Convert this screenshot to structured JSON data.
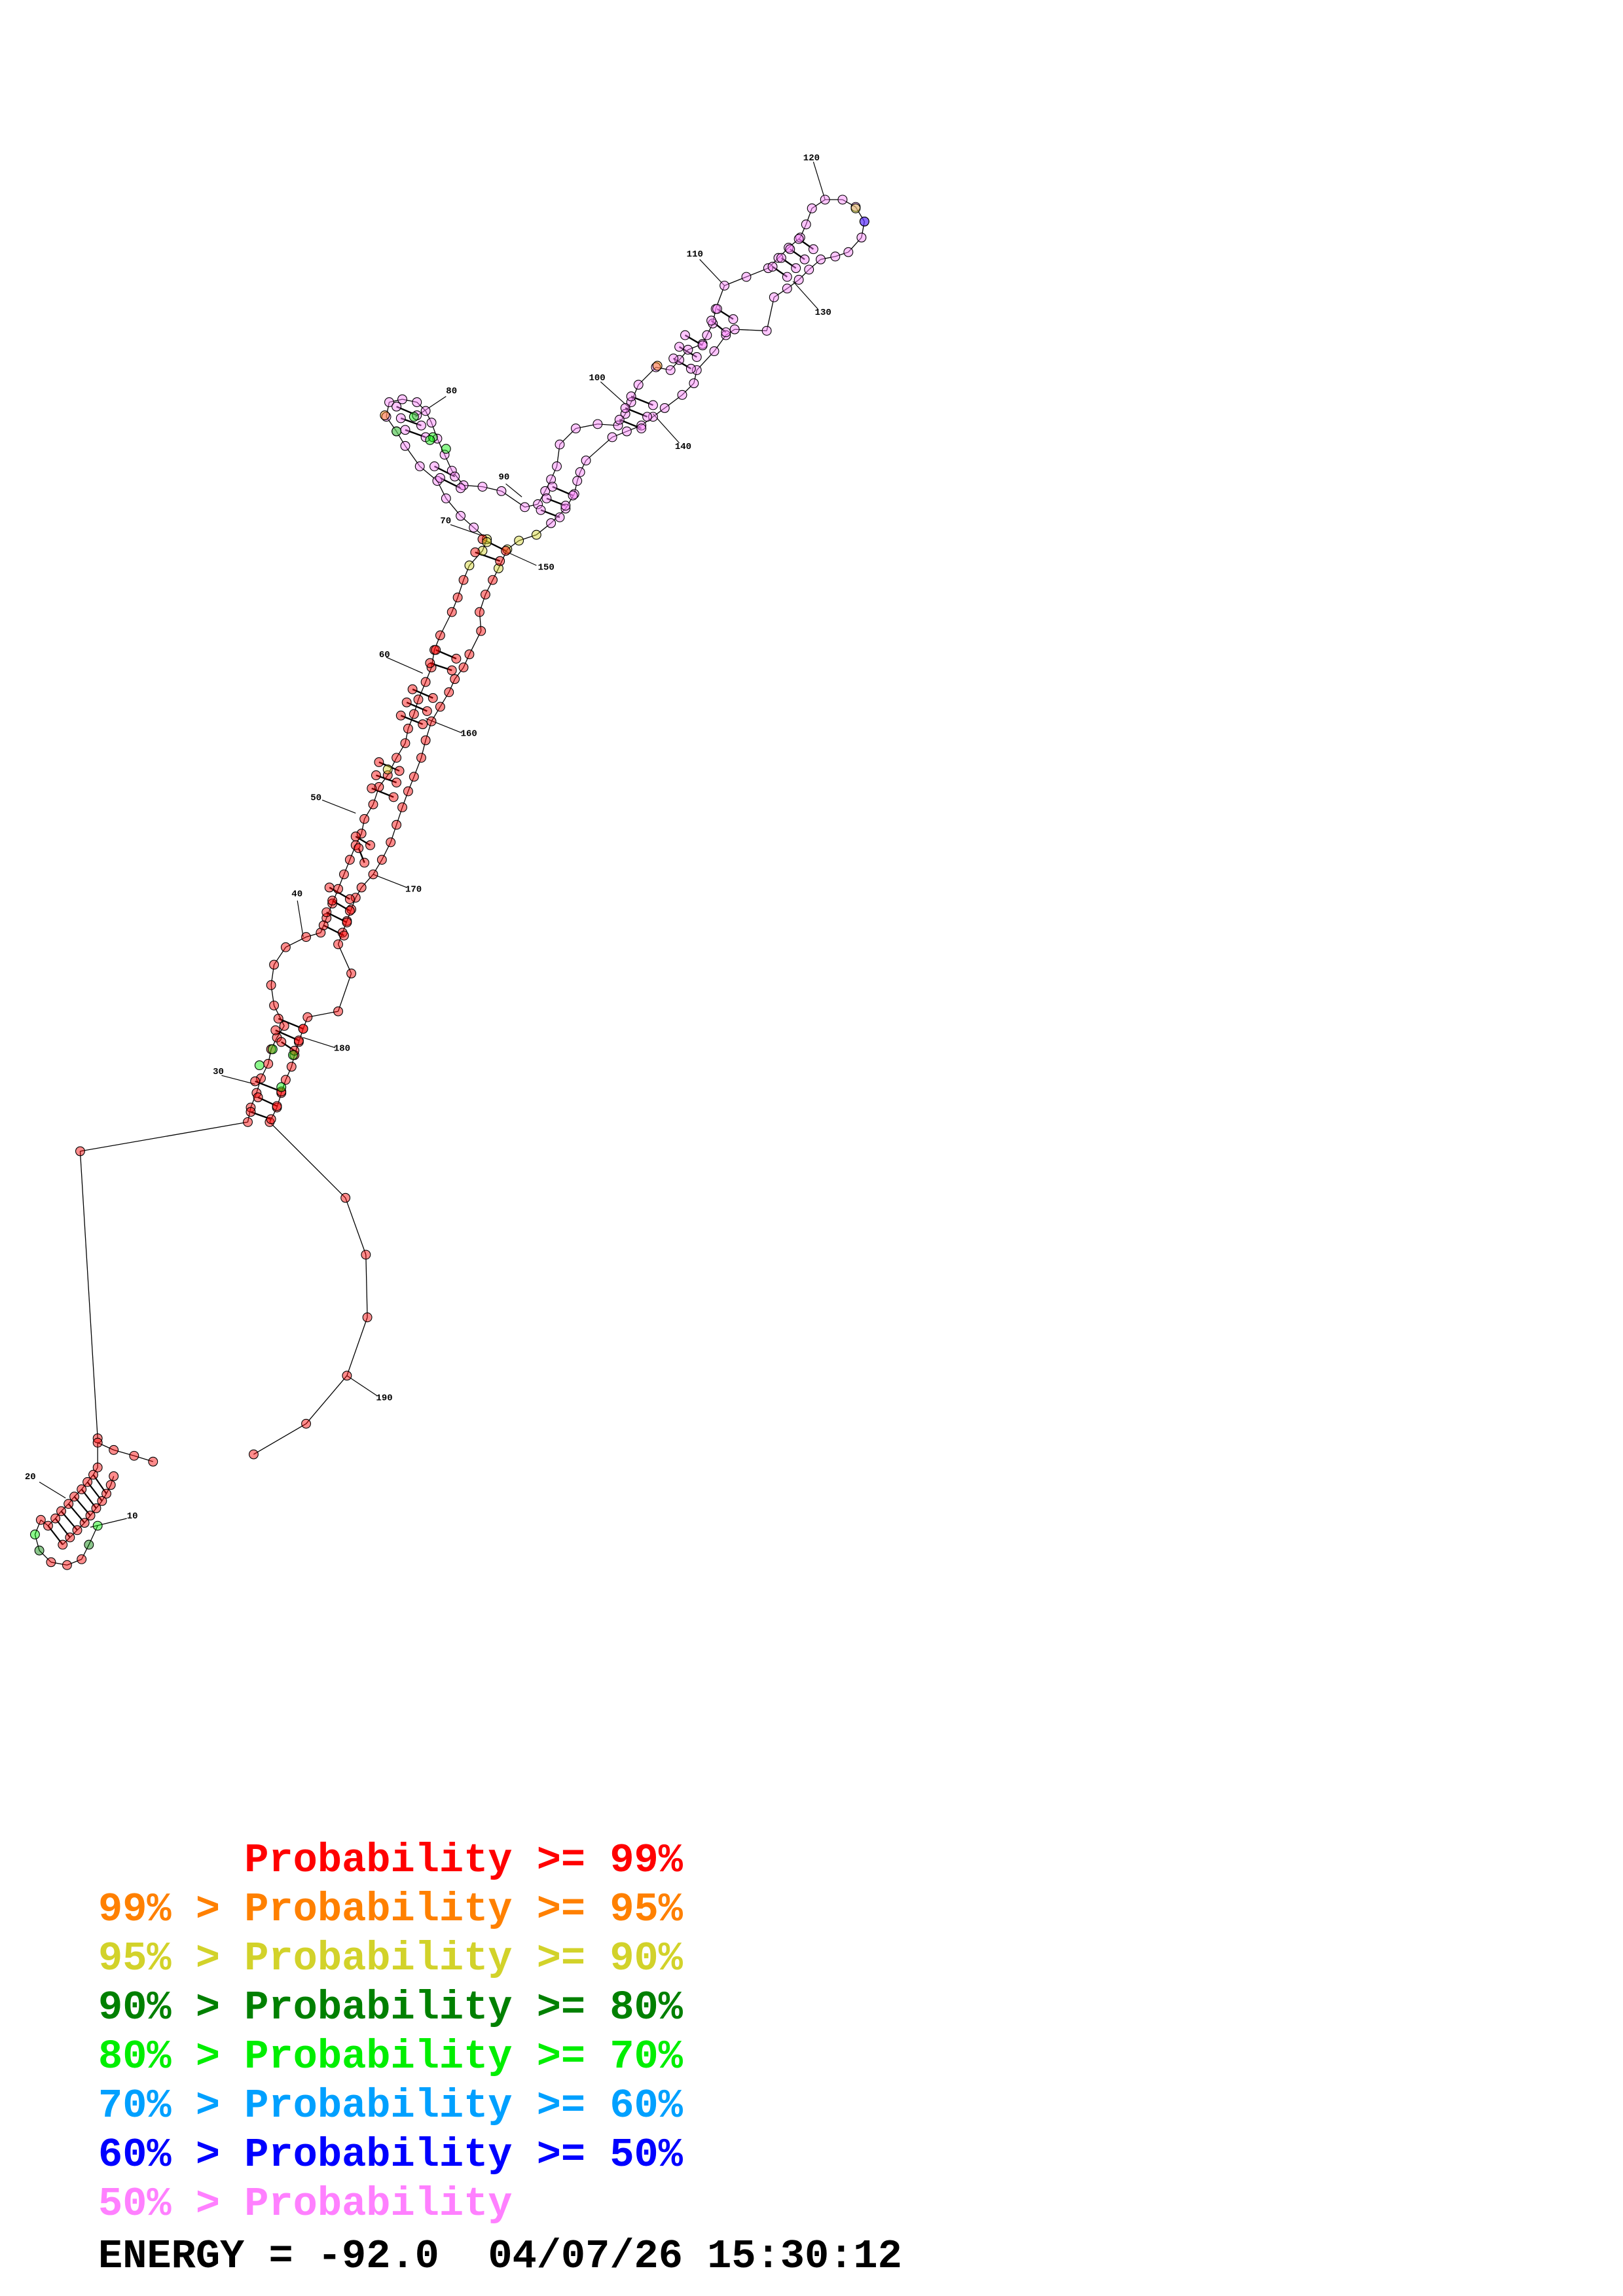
{
  "structure": {
    "position_labels": [
      "10",
      "20",
      "30",
      "40",
      "50",
      "60",
      "70",
      "80",
      "90",
      "100",
      "110",
      "120",
      "130",
      "140",
      "150",
      "160",
      "170",
      "180",
      "190"
    ]
  },
  "legend": [
    {
      "prefix": "",
      "text": "Probability >= 99%",
      "color": "#ff0000"
    },
    {
      "prefix": "99% > ",
      "text": "Probability >= 95%",
      "color": "#ff8000"
    },
    {
      "prefix": "95% > ",
      "text": "Probability >= 90%",
      "color": "#d2d22a"
    },
    {
      "prefix": "90% > ",
      "text": "Probability >= 80%",
      "color": "#008000"
    },
    {
      "prefix": "80% > ",
      "text": "Probability >= 70%",
      "color": "#00ee00"
    },
    {
      "prefix": "70% > ",
      "text": "Probability >= 60%",
      "color": "#00a0ff"
    },
    {
      "prefix": "60% > ",
      "text": "Probability >= 50%",
      "color": "#0000ff"
    },
    {
      "prefix": "50% > ",
      "text": "Probability",
      "color": "#ff80ff"
    }
  ],
  "footer": {
    "energy_text": "ENERGY = -92.0",
    "timestamp": "04/07/26 15:30:12"
  },
  "colors": {
    "red": "#ff0000",
    "orange": "#ff8000",
    "yellow": "#d2d22a",
    "dark_green": "#008000",
    "green": "#00ee00",
    "light_blue": "#00a0ff",
    "blue": "#0000ff",
    "pink": "#ff80ff"
  }
}
